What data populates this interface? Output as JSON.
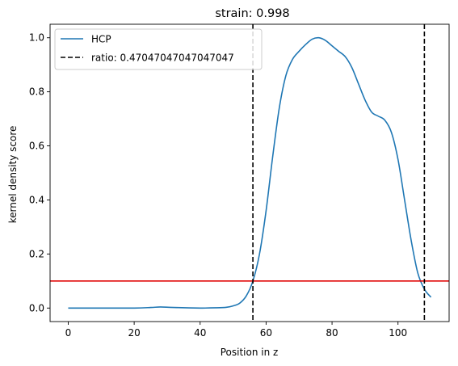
{
  "chart_data": {
    "type": "line",
    "title": "strain: 0.998",
    "xlabel": "Position in z",
    "ylabel": "kernel density score",
    "xlim": [
      -5.5,
      115.5
    ],
    "ylim": [
      -0.05,
      1.05
    ],
    "xticks": [
      0,
      20,
      40,
      60,
      80,
      100
    ],
    "yticks": [
      0.0,
      0.2,
      0.4,
      0.6,
      0.8,
      1.0
    ],
    "grid": false,
    "legend_position": "top-left",
    "series": [
      {
        "name": "HCP",
        "color": "#1f77b4",
        "x": [
          0,
          10,
          20,
          25,
          28,
          32,
          40,
          45,
          48,
          50,
          52,
          54,
          56,
          58,
          60,
          62,
          64,
          66,
          68,
          70,
          72,
          74,
          76,
          78,
          80,
          82,
          84,
          86,
          88,
          90,
          92,
          94,
          96,
          98,
          100,
          102,
          104,
          106,
          108,
          110
        ],
        "y": [
          0.0,
          0.0,
          0.0,
          0.002,
          0.004,
          0.002,
          0.0,
          0.001,
          0.003,
          0.008,
          0.018,
          0.045,
          0.1,
          0.2,
          0.36,
          0.56,
          0.74,
          0.86,
          0.92,
          0.95,
          0.975,
          0.995,
          1.0,
          0.99,
          0.97,
          0.95,
          0.93,
          0.89,
          0.83,
          0.77,
          0.725,
          0.71,
          0.695,
          0.65,
          0.55,
          0.4,
          0.25,
          0.13,
          0.07,
          0.04
        ]
      }
    ],
    "vlines": [
      {
        "x": 56.0,
        "label": "ratio: 0.47047047047047047",
        "color": "#000000",
        "style": "dashed"
      },
      {
        "x": 108.0,
        "color": "#000000",
        "style": "dashed"
      }
    ],
    "hlines": [
      {
        "y": 0.1,
        "color": "#e00000"
      }
    ]
  }
}
